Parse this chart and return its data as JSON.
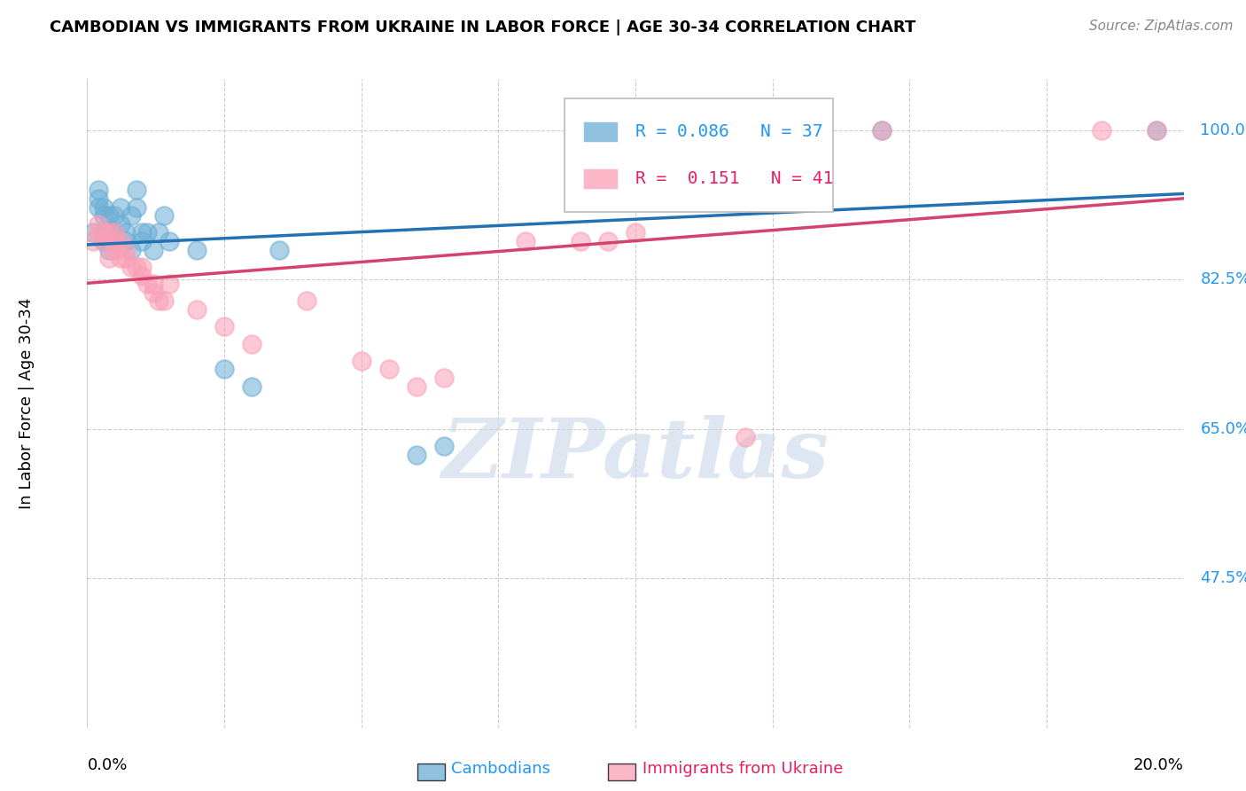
{
  "title": "CAMBODIAN VS IMMIGRANTS FROM UKRAINE IN LABOR FORCE | AGE 30-34 CORRELATION CHART",
  "source": "Source: ZipAtlas.com",
  "ylabel": "In Labor Force | Age 30-34",
  "ytick_labels": [
    "100.0%",
    "82.5%",
    "65.0%",
    "47.5%"
  ],
  "ytick_values": [
    1.0,
    0.825,
    0.65,
    0.475
  ],
  "xlim": [
    0.0,
    0.2
  ],
  "ylim": [
    0.3,
    1.06
  ],
  "blue_color": "#6baed6",
  "pink_color": "#fa9fb5",
  "blue_line_color": "#2171b5",
  "pink_line_color": "#d4436e",
  "legend_blue_text_color": "#2196F3",
  "legend_pink_text_color": "#e91e63",
  "R_blue": 0.086,
  "N_blue": 37,
  "R_pink": 0.151,
  "N_pink": 41,
  "cambodian_x": [
    0.001,
    0.002,
    0.002,
    0.002,
    0.003,
    0.003,
    0.003,
    0.003,
    0.004,
    0.004,
    0.004,
    0.005,
    0.005,
    0.006,
    0.006,
    0.007,
    0.007,
    0.008,
    0.008,
    0.009,
    0.009,
    0.01,
    0.01,
    0.011,
    0.012,
    0.013,
    0.014,
    0.015,
    0.02,
    0.025,
    0.03,
    0.035,
    0.06,
    0.065,
    0.11,
    0.145,
    0.195
  ],
  "cambodian_y": [
    0.88,
    0.91,
    0.93,
    0.92,
    0.9,
    0.91,
    0.87,
    0.88,
    0.88,
    0.9,
    0.86,
    0.9,
    0.88,
    0.89,
    0.91,
    0.88,
    0.87,
    0.9,
    0.86,
    0.91,
    0.93,
    0.87,
    0.88,
    0.88,
    0.86,
    0.88,
    0.9,
    0.87,
    0.86,
    0.72,
    0.7,
    0.86,
    0.62,
    0.63,
    1.0,
    1.0,
    1.0
  ],
  "ukraine_x": [
    0.001,
    0.002,
    0.002,
    0.003,
    0.003,
    0.004,
    0.004,
    0.005,
    0.005,
    0.005,
    0.006,
    0.006,
    0.007,
    0.007,
    0.008,
    0.009,
    0.01,
    0.01,
    0.011,
    0.012,
    0.012,
    0.013,
    0.014,
    0.015,
    0.02,
    0.025,
    0.03,
    0.04,
    0.05,
    0.055,
    0.06,
    0.065,
    0.08,
    0.09,
    0.095,
    0.1,
    0.12,
    0.13,
    0.145,
    0.185,
    0.195
  ],
  "ukraine_y": [
    0.87,
    0.89,
    0.88,
    0.87,
    0.88,
    0.88,
    0.85,
    0.86,
    0.87,
    0.88,
    0.85,
    0.87,
    0.86,
    0.85,
    0.84,
    0.84,
    0.83,
    0.84,
    0.82,
    0.82,
    0.81,
    0.8,
    0.8,
    0.82,
    0.79,
    0.77,
    0.75,
    0.8,
    0.73,
    0.72,
    0.7,
    0.71,
    0.87,
    0.87,
    0.87,
    0.88,
    0.64,
    1.0,
    1.0,
    1.0,
    1.0
  ],
  "watermark": "ZIPatlas",
  "background_color": "#ffffff",
  "grid_color": "#cccccc",
  "grid_xticks": [
    0.025,
    0.05,
    0.075,
    0.1,
    0.125,
    0.15,
    0.175
  ]
}
